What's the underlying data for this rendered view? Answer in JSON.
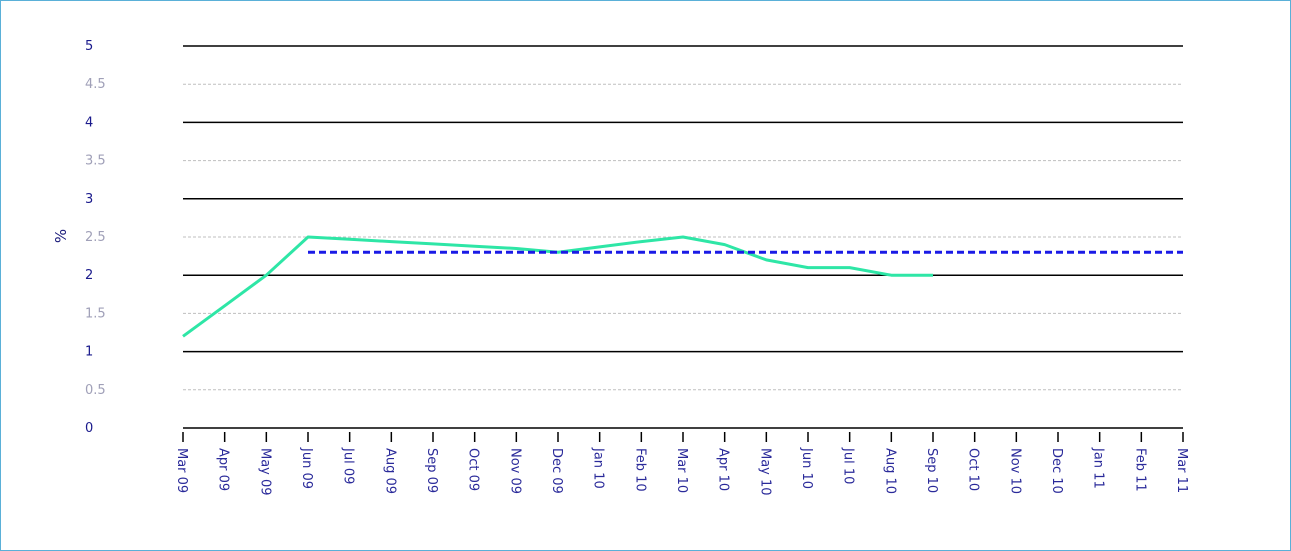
{
  "chart_data": {
    "type": "line",
    "ylabel": "%",
    "ylim": [
      0,
      5
    ],
    "y_ticks": [
      "0",
      "0.5",
      "1",
      "1.5",
      "2",
      "2.5",
      "3",
      "3.5",
      "4",
      "4.5",
      "5"
    ],
    "categories": [
      "Mar 09",
      "Apr 09",
      "May 09",
      "Jun 09",
      "Jul 09",
      "Aug 09",
      "Sep 09",
      "Oct 09",
      "Nov 09",
      "Dec 09",
      "Jan 10",
      "Feb 10",
      "Mar 10",
      "Apr 10",
      "May 10",
      "Jun 10",
      "Jul 10",
      "Aug 10",
      "Sep 10",
      "Oct 10",
      "Nov 10",
      "Dec 10",
      "Jan 11",
      "Feb 11",
      "Mar 11"
    ],
    "grid": true,
    "series": [
      {
        "color": "#2ee6a6",
        "style": "solid",
        "values": [
          1.2,
          1.6,
          2.0,
          2.5,
          2.47,
          2.44,
          2.41,
          2.38,
          2.35,
          2.3,
          2.37,
          2.44,
          2.5,
          2.4,
          2.2,
          2.1,
          2.1,
          2.0,
          2.0,
          null,
          null,
          null,
          null,
          null,
          null
        ]
      },
      {
        "color": "#1a1ae6",
        "style": "dashed",
        "values": [
          null,
          null,
          null,
          2.3,
          2.3,
          2.3,
          2.3,
          2.3,
          2.3,
          2.3,
          2.3,
          2.3,
          2.3,
          2.3,
          2.3,
          2.3,
          2.3,
          2.3,
          2.3,
          2.3,
          2.3,
          2.3,
          2.3,
          2.3,
          2.3
        ]
      }
    ],
    "colors": {
      "major_grid": "#000000",
      "minor_grid": "#bfbfbf",
      "major_tick_label": "#1a1a8c",
      "minor_tick_label": "#a0a0b8",
      "x_tick_label": "#2a2a9a"
    }
  }
}
